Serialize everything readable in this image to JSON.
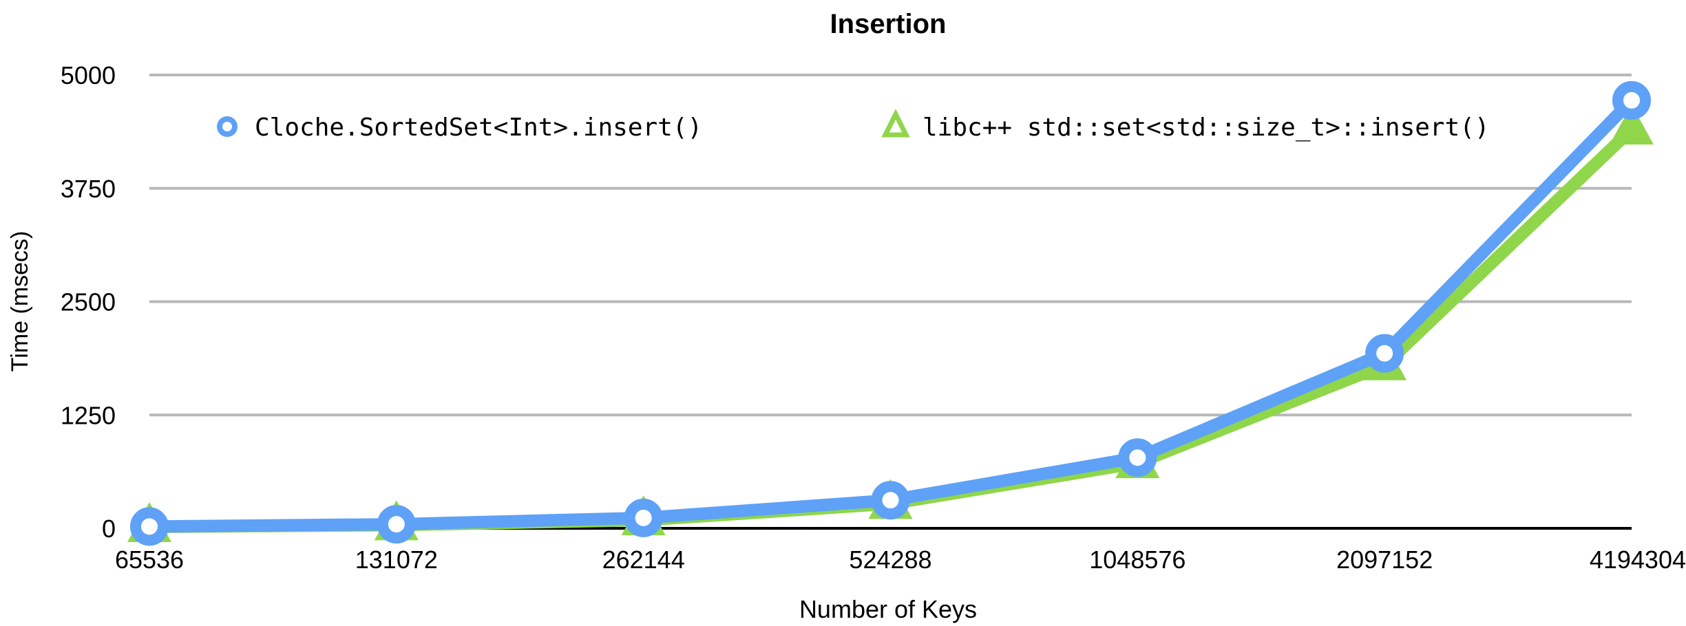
{
  "chart_data": {
    "type": "line",
    "title": "Insertion",
    "xlabel": "Number of Keys",
    "ylabel": "Time (msecs)",
    "categories": [
      "65536",
      "131072",
      "262144",
      "524288",
      "1048576",
      "2097152",
      "4194304"
    ],
    "yticks": [
      "0",
      "1250",
      "2500",
      "3750",
      "5000"
    ],
    "ylim": [
      0,
      5000
    ],
    "grid": true,
    "legend_position": "top",
    "series": [
      {
        "name": "Cloche.SortedSet<Int>.insert()",
        "color": "#5ea1f7",
        "marker": "circle",
        "values": [
          20,
          45,
          115,
          310,
          780,
          1930,
          4720
        ]
      },
      {
        "name": "libc++ std::set<std::size_t>::insert()",
        "color": "#8fd64a",
        "marker": "triangle",
        "values": [
          15,
          35,
          90,
          270,
          720,
          1800,
          4400
        ]
      }
    ]
  }
}
